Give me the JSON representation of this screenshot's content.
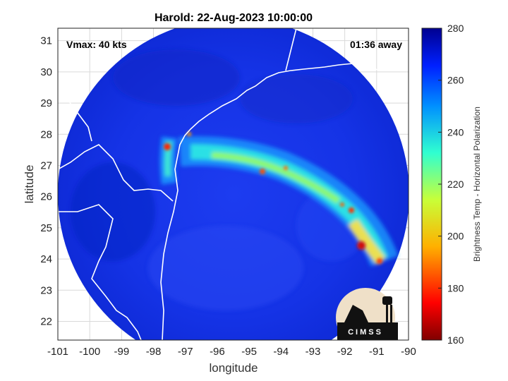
{
  "title": "Harold: 22-Aug-2023 10:00:00",
  "vmax_label": "Vmax: 40 kts",
  "time_label": "01:36 away",
  "xlabel": "longitude",
  "ylabel": "latitude",
  "colorbar_label": "Brightness Temp - Horizontal Polarization",
  "logo_text": "CIMSS",
  "x_ticks": [
    "-101",
    "-100",
    "-99",
    "-98",
    "-97",
    "-96",
    "-95",
    "-94",
    "-93",
    "-92",
    "-91",
    "-90"
  ],
  "y_ticks": [
    "22",
    "23",
    "24",
    "25",
    "26",
    "27",
    "28",
    "29",
    "30",
    "31"
  ],
  "colorbar_ticks": [
    "160",
    "180",
    "200",
    "220",
    "240",
    "260",
    "280"
  ],
  "colors": {
    "background_swath": "#0a2fd8",
    "warm": "#1e3fff",
    "cold": "#a01010"
  }
}
